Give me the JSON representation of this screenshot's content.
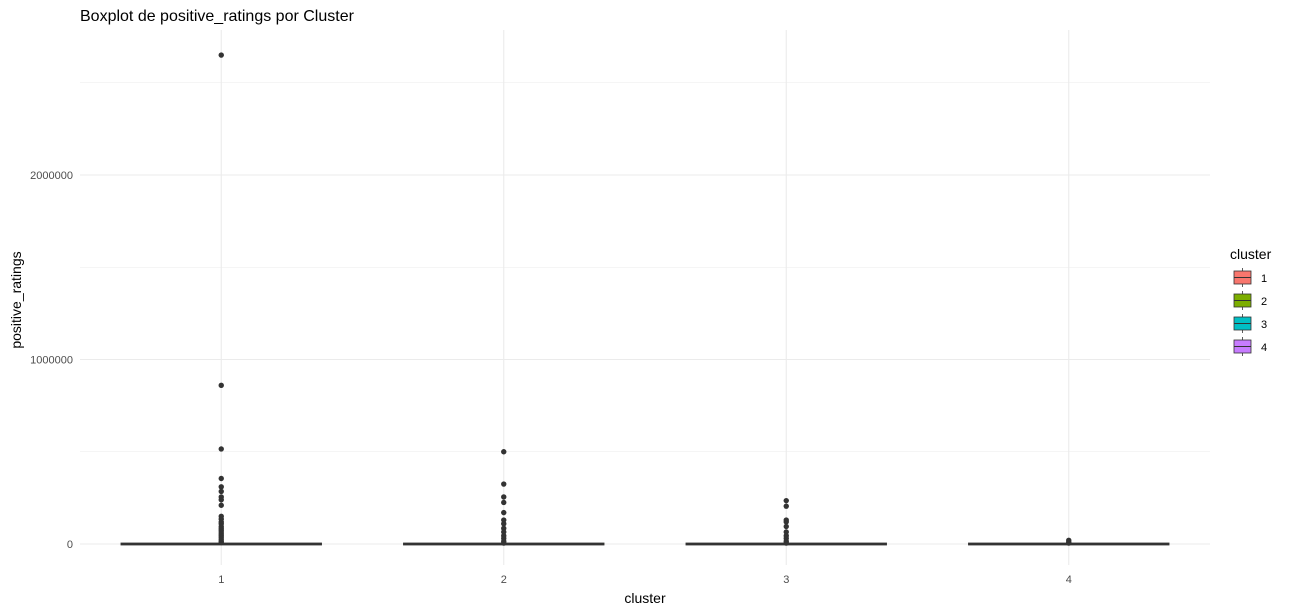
{
  "chart_data": {
    "type": "boxplot",
    "title": "Boxplot de positive_ratings por Cluster",
    "xlabel": "cluster",
    "ylabel": "positive_ratings",
    "categories": [
      "1",
      "2",
      "3",
      "4"
    ],
    "y_ticks": [
      0,
      1000000,
      2000000
    ],
    "y_tick_labels": [
      "0",
      "1000000",
      "2000000"
    ],
    "ylim": [
      0,
      2650000
    ],
    "grid": true,
    "legend": {
      "title": "cluster",
      "position": "right",
      "items": [
        {
          "label": "1",
          "color": "#F8766D"
        },
        {
          "label": "2",
          "color": "#7CAE00"
        },
        {
          "label": "3",
          "color": "#00BFC4"
        },
        {
          "label": "4",
          "color": "#C77CFF"
        }
      ]
    },
    "series": [
      {
        "cluster": "1",
        "color": "#F8766D",
        "median": 0,
        "q1": 0,
        "q3": 0,
        "whisker_low": 0,
        "whisker_high": 0,
        "outliers": [
          2650000,
          860000,
          515000,
          355000,
          310000,
          285000,
          255000,
          240000,
          210000,
          150000,
          135000,
          120000,
          110000,
          95000,
          85000,
          75000,
          65000,
          55000,
          45000,
          35000,
          25000,
          15000,
          8000
        ]
      },
      {
        "cluster": "2",
        "color": "#7CAE00",
        "median": 0,
        "q1": 0,
        "q3": 0,
        "whisker_low": 0,
        "whisker_high": 0,
        "outliers": [
          500000,
          325000,
          255000,
          225000,
          170000,
          130000,
          110000,
          85000,
          65000,
          45000,
          30000,
          15000,
          5000
        ]
      },
      {
        "cluster": "3",
        "color": "#00BFC4",
        "median": 0,
        "q1": 0,
        "q3": 0,
        "whisker_low": 0,
        "whisker_high": 0,
        "outliers": [
          235000,
          205000,
          130000,
          120000,
          95000,
          65000,
          45000,
          30000,
          15000,
          5000
        ]
      },
      {
        "cluster": "4",
        "color": "#C77CFF",
        "median": 0,
        "q1": 0,
        "q3": 0,
        "whisker_low": 0,
        "whisker_high": 0,
        "outliers": [
          20000,
          10000,
          5000
        ]
      }
    ]
  }
}
